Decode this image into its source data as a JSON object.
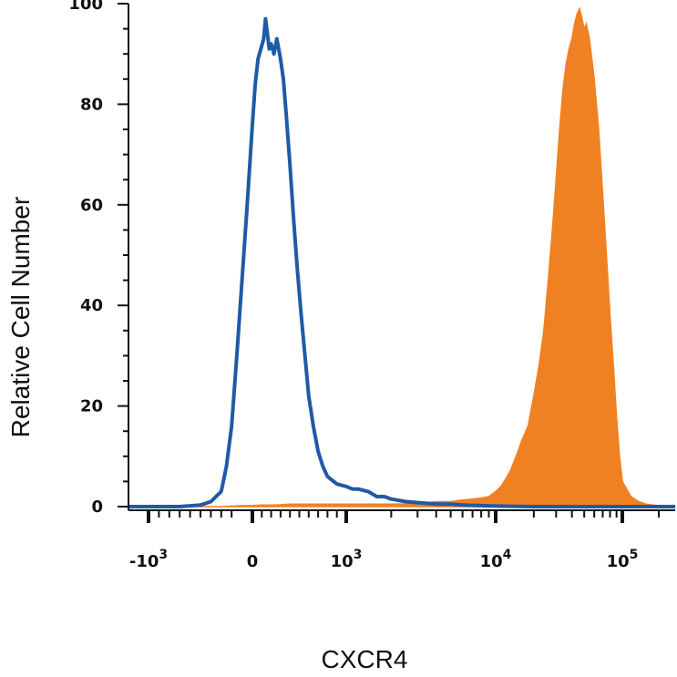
{
  "chart_data": {
    "type": "area",
    "title": "",
    "xlabel": "CXCR4",
    "ylabel": "Relative Cell Number",
    "x_scale": "biexponential",
    "xlim": [
      -2000,
      180000
    ],
    "ylim": [
      0,
      100
    ],
    "grid": false,
    "legend": "none",
    "y_ticks": [
      0,
      20,
      40,
      60,
      80,
      100
    ],
    "y_tick_labels": [
      "0",
      "20",
      "40",
      "60",
      "80",
      "100"
    ],
    "x_ticks": [
      {
        "value": -1000,
        "base": "-10",
        "exp": "3"
      },
      {
        "value": 0,
        "base": "0",
        "exp": ""
      },
      {
        "value": 1000,
        "base": "10",
        "exp": "3"
      },
      {
        "value": 10000,
        "base": "10",
        "exp": "4"
      },
      {
        "value": 100000,
        "base": "10",
        "exp": "5"
      }
    ],
    "series": [
      {
        "style": "filled",
        "color": "#f08122",
        "x": [
          -2000,
          -300,
          -100,
          0,
          100,
          250,
          400,
          600,
          800,
          1000,
          1500,
          2000,
          3000,
          4000,
          5000,
          6000,
          7000,
          8000,
          9000,
          10000,
          11000,
          12000,
          13000,
          14000,
          15000,
          16000,
          18000,
          20000,
          22000,
          24000,
          26000,
          28000,
          30000,
          32000,
          34000,
          36000,
          38000,
          40000,
          42000,
          44000,
          46000,
          48000,
          50000,
          52000,
          55000,
          60000,
          65000,
          70000,
          75000,
          80000,
          85000,
          90000,
          95000,
          100000,
          110000,
          120000,
          130000,
          140000,
          150000,
          160000,
          180000
        ],
        "y": [
          0,
          0,
          0.2,
          0.2,
          0.3,
          0.3,
          0.5,
          0.5,
          0.5,
          0.5,
          0.5,
          0.5,
          0.6,
          1.0,
          1.0,
          1.3,
          1.5,
          1.7,
          2.0,
          3.0,
          4.0,
          5.5,
          7.0,
          9.0,
          11.0,
          13.0,
          16.0,
          22.0,
          28.0,
          35.0,
          45.0,
          55.0,
          65.0,
          75.0,
          83.0,
          88.0,
          91.0,
          93.0,
          96.0,
          98.0,
          99.0,
          97.0,
          95.0,
          96.0,
          93.0,
          85.0,
          75.0,
          62.0,
          50.0,
          38.0,
          28.0,
          18.0,
          10.0,
          5.0,
          2.0,
          1.0,
          0.5,
          0.3,
          0.2,
          0.1,
          0
        ]
      },
      {
        "style": "outline",
        "color": "#1f5aa6",
        "x": [
          -2000,
          -1000,
          -700,
          -500,
          -400,
          -300,
          -250,
          -200,
          -150,
          -100,
          -50,
          0,
          30,
          60,
          90,
          120,
          140,
          160,
          180,
          200,
          230,
          260,
          300,
          330,
          360,
          400,
          440,
          480,
          520,
          560,
          600,
          650,
          700,
          750,
          800,
          900,
          1000,
          1100,
          1200,
          1400,
          1600,
          1800,
          2000,
          2500,
          3000,
          4000,
          5000,
          6000,
          8000,
          10000,
          20000,
          50000,
          100000,
          180000
        ],
        "y": [
          0,
          0,
          0,
          0.3,
          1.0,
          3.0,
          8.0,
          16.0,
          30.0,
          45.0,
          60.0,
          76.0,
          84.0,
          89.0,
          91.0,
          93.0,
          97.0,
          94.0,
          91.0,
          92.0,
          90.0,
          93.0,
          89.0,
          85.0,
          78.0,
          68.0,
          57.0,
          47.0,
          38.0,
          30.0,
          22.0,
          16.0,
          11.0,
          8.0,
          6.0,
          4.5,
          4.0,
          3.5,
          3.5,
          3.0,
          2.0,
          2.0,
          1.5,
          1.0,
          0.8,
          0.5,
          0.5,
          0.3,
          0.2,
          0.1,
          0,
          0,
          0,
          0
        ]
      }
    ]
  }
}
